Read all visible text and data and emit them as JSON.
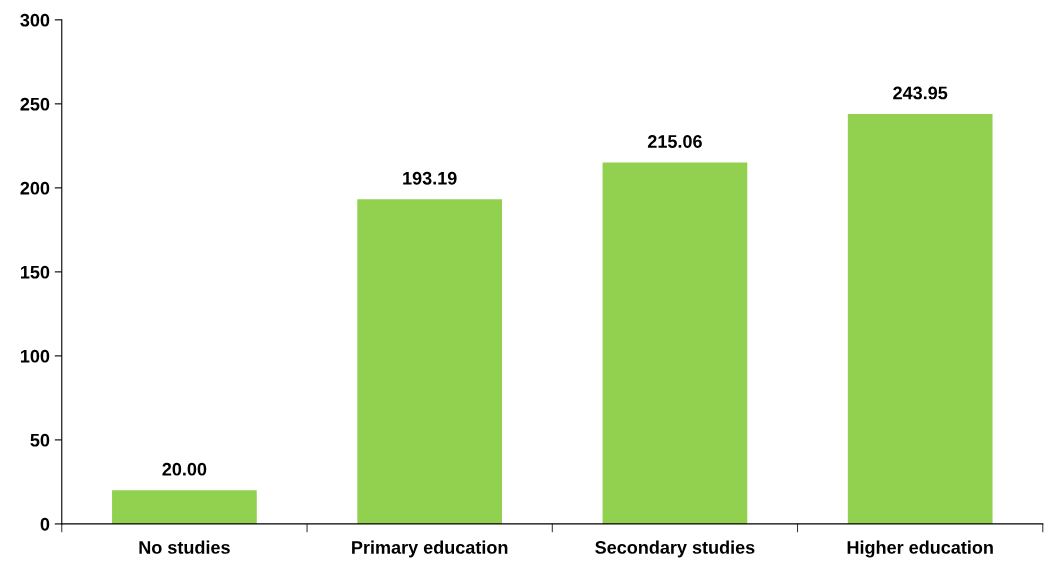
{
  "chart_data": {
    "type": "bar",
    "categories": [
      "No studies",
      "Primary education",
      "Secondary studies",
      "Higher education"
    ],
    "values": [
      20.0,
      193.19,
      215.06,
      243.95
    ],
    "value_labels": [
      "20.00",
      "193.19",
      "215.06",
      "243.95"
    ],
    "color": "#92d050",
    "ylim": [
      0,
      300
    ],
    "yticks": [
      0,
      50,
      100,
      150,
      200,
      250,
      300
    ],
    "grid": false
  }
}
